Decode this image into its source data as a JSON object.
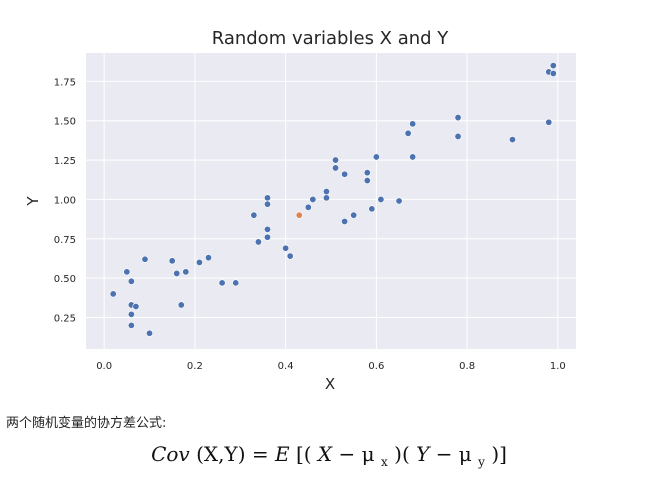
{
  "chart_data": {
    "type": "scatter",
    "title": "Random variables X and Y",
    "xlabel": "X",
    "ylabel": "Y",
    "xlim": [
      -0.04,
      1.04
    ],
    "ylim": [
      0.05,
      1.93
    ],
    "xticks": [
      "0.0",
      "0.2",
      "0.4",
      "0.6",
      "0.8",
      "1.0"
    ],
    "yticks": [
      "0.25",
      "0.50",
      "0.75",
      "1.00",
      "1.25",
      "1.50",
      "1.75"
    ],
    "grid": true,
    "series": [
      {
        "color": "#4c72b0",
        "points": [
          [
            0.02,
            0.4
          ],
          [
            0.05,
            0.54
          ],
          [
            0.06,
            0.48
          ],
          [
            0.06,
            0.33
          ],
          [
            0.07,
            0.32
          ],
          [
            0.06,
            0.27
          ],
          [
            0.06,
            0.2
          ],
          [
            0.09,
            0.62
          ],
          [
            0.1,
            0.15
          ],
          [
            0.15,
            0.61
          ],
          [
            0.16,
            0.53
          ],
          [
            0.17,
            0.33
          ],
          [
            0.18,
            0.54
          ],
          [
            0.21,
            0.6
          ],
          [
            0.23,
            0.63
          ],
          [
            0.26,
            0.47
          ],
          [
            0.29,
            0.47
          ],
          [
            0.33,
            0.9
          ],
          [
            0.34,
            0.73
          ],
          [
            0.36,
            1.01
          ],
          [
            0.36,
            0.97
          ],
          [
            0.36,
            0.81
          ],
          [
            0.36,
            0.76
          ],
          [
            0.4,
            0.69
          ],
          [
            0.41,
            0.64
          ],
          [
            0.45,
            0.95
          ],
          [
            0.46,
            1.0
          ],
          [
            0.49,
            1.05
          ],
          [
            0.49,
            1.01
          ],
          [
            0.51,
            1.2
          ],
          [
            0.51,
            1.25
          ],
          [
            0.53,
            1.16
          ],
          [
            0.53,
            0.86
          ],
          [
            0.55,
            0.9
          ],
          [
            0.58,
            1.17
          ],
          [
            0.58,
            1.12
          ],
          [
            0.59,
            0.94
          ],
          [
            0.6,
            1.27
          ],
          [
            0.61,
            1.0
          ],
          [
            0.65,
            0.99
          ],
          [
            0.67,
            1.42
          ],
          [
            0.68,
            1.48
          ],
          [
            0.68,
            1.27
          ],
          [
            0.78,
            1.52
          ],
          [
            0.78,
            1.4
          ],
          [
            0.9,
            1.38
          ],
          [
            0.98,
            1.49
          ],
          [
            0.98,
            1.81
          ],
          [
            0.99,
            1.85
          ],
          [
            0.99,
            1.8
          ]
        ]
      },
      {
        "color": "#dd8452",
        "points": [
          [
            0.43,
            0.9
          ]
        ]
      }
    ]
  },
  "caption": "两个随机变量的协方差公式:",
  "formula": {
    "cov": "Cov",
    "args": "(X,Y)",
    "eq": " = ",
    "E": "E",
    "lbr": "[(",
    "X": "X",
    "minus1": " − μ",
    "sub_x": "x",
    "mid": ")(",
    "Y": "Y",
    "minus2": " − μ",
    "sub_y": "y",
    "rbr": ")]"
  }
}
